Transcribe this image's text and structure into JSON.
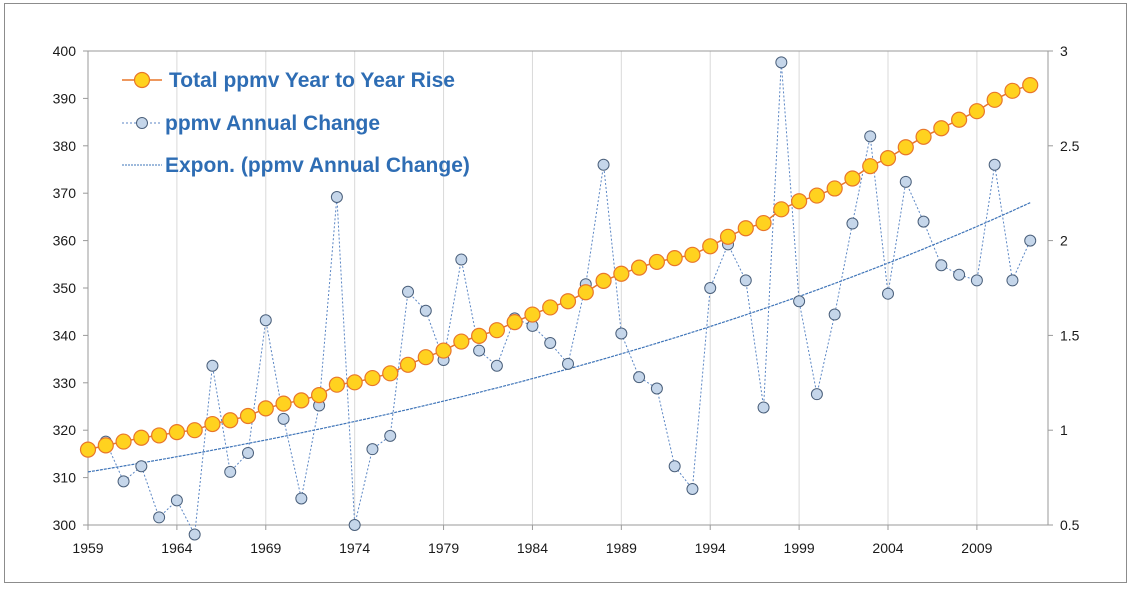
{
  "chart_data": {
    "type": "line",
    "title": "",
    "xlabel": "",
    "ylabel": "",
    "x_tick_labels": [
      "1959",
      "1964",
      "1969",
      "1974",
      "1979",
      "1984",
      "1989",
      "1994",
      "1999",
      "2004",
      "2009"
    ],
    "y_left_tick_labels": [
      "300",
      "310",
      "320",
      "330",
      "340",
      "350",
      "360",
      "370",
      "380",
      "390",
      "400"
    ],
    "y_right_tick_labels": [
      "0.5",
      "1",
      "1.5",
      "2",
      "2.5",
      "3"
    ],
    "xlim": [
      1959,
      2013
    ],
    "ylim_left": [
      300,
      400
    ],
    "ylim_right": [
      0.5,
      3
    ],
    "grid": "vertical",
    "legend_position": "top-left",
    "colors": {
      "total_fill": "#ffd21f",
      "total_edge": "#e8762a",
      "annual_fill": "#c5d6ea",
      "annual_edge": "#4a5f7a",
      "annual_line": "#5b86c4",
      "expon_line": "#3e74b8"
    },
    "series": [
      {
        "name": "Total ppmv Year to Year Rise",
        "axis": "left",
        "x": [
          1959,
          1960,
          1961,
          1962,
          1963,
          1964,
          1965,
          1966,
          1967,
          1968,
          1969,
          1970,
          1971,
          1972,
          1973,
          1974,
          1975,
          1976,
          1977,
          1978,
          1979,
          1980,
          1981,
          1982,
          1983,
          1984,
          1985,
          1986,
          1987,
          1988,
          1989,
          1990,
          1991,
          1992,
          1993,
          1994,
          1995,
          1996,
          1997,
          1998,
          1999,
          2000,
          2001,
          2002,
          2003,
          2004,
          2005,
          2006,
          2007,
          2008,
          2009,
          2010,
          2011,
          2012
        ],
        "values": [
          315.9,
          316.8,
          317.6,
          318.4,
          318.9,
          319.6,
          320.0,
          321.3,
          322.1,
          323.0,
          324.6,
          325.6,
          326.3,
          327.4,
          329.6,
          330.1,
          331.0,
          332.0,
          333.8,
          335.4,
          336.8,
          338.7,
          339.9,
          341.1,
          342.8,
          344.4,
          345.9,
          347.2,
          349.1,
          351.5,
          353.0,
          354.3,
          355.5,
          356.3,
          357.0,
          358.8,
          360.8,
          362.6,
          363.7,
          366.6,
          368.3,
          369.5,
          371.0,
          373.1,
          375.7,
          377.4,
          379.7,
          381.9,
          383.7,
          385.5,
          387.3,
          389.7,
          391.6,
          392.8
        ]
      },
      {
        "name": "ppmv Annual Change",
        "axis": "right",
        "x": [
          1960,
          1961,
          1962,
          1963,
          1964,
          1965,
          1966,
          1967,
          1968,
          1969,
          1970,
          1971,
          1972,
          1973,
          1974,
          1975,
          1976,
          1977,
          1978,
          1979,
          1980,
          1981,
          1982,
          1983,
          1984,
          1985,
          1986,
          1987,
          1988,
          1989,
          1990,
          1991,
          1992,
          1993,
          1994,
          1995,
          1996,
          1997,
          1998,
          1999,
          2000,
          2001,
          2002,
          2003,
          2004,
          2005,
          2006,
          2007,
          2008,
          2009,
          2010,
          2011,
          2012
        ],
        "values": [
          0.94,
          0.73,
          0.81,
          0.54,
          0.63,
          0.45,
          1.34,
          0.78,
          0.88,
          1.58,
          1.06,
          0.64,
          1.13,
          2.23,
          0.5,
          0.9,
          0.97,
          1.73,
          1.63,
          1.37,
          1.9,
          1.42,
          1.34,
          1.59,
          1.55,
          1.46,
          1.35,
          1.77,
          2.4,
          1.51,
          1.28,
          1.22,
          0.81,
          0.69,
          1.75,
          1.98,
          1.79,
          1.12,
          2.94,
          1.68,
          1.19,
          1.61,
          2.09,
          2.55,
          1.72,
          2.31,
          2.1,
          1.87,
          1.82,
          1.79,
          2.4,
          1.79,
          2.0
        ]
      },
      {
        "name": "Expon. (ppmv Annual Change)",
        "axis": "right",
        "type": "trendline",
        "x": [
          1959,
          2012
        ],
        "values": [
          0.78,
          2.2
        ]
      }
    ]
  }
}
